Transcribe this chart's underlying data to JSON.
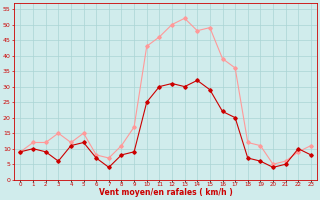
{
  "hours": [
    0,
    1,
    2,
    3,
    4,
    5,
    6,
    7,
    8,
    9,
    10,
    11,
    12,
    13,
    14,
    15,
    16,
    17,
    18,
    19,
    20,
    21,
    22,
    23
  ],
  "wind_avg": [
    9,
    10,
    9,
    6,
    11,
    12,
    7,
    4,
    8,
    9,
    25,
    30,
    31,
    30,
    32,
    29,
    22,
    20,
    7,
    6,
    4,
    5,
    10,
    8
  ],
  "wind_gust": [
    9,
    12,
    12,
    15,
    12,
    15,
    8,
    7,
    11,
    17,
    43,
    46,
    50,
    52,
    48,
    49,
    39,
    36,
    12,
    11,
    5,
    6,
    9,
    11
  ],
  "bg_color": "#d0ecec",
  "grid_color": "#aad4d4",
  "avg_color": "#cc0000",
  "gust_color": "#ff9999",
  "xlabel": "Vent moyen/en rafales ( km/h )",
  "xlabel_color": "#cc0000",
  "tick_color": "#cc0000",
  "ylim": [
    0,
    57
  ],
  "yticks": [
    0,
    5,
    10,
    15,
    20,
    25,
    30,
    35,
    40,
    45,
    50,
    55
  ]
}
